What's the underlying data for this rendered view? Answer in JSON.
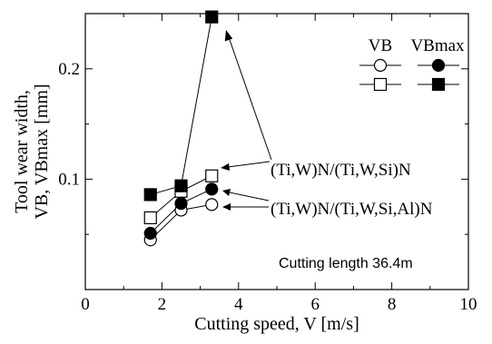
{
  "chart_data": {
    "type": "line",
    "xlabel": "Cutting speed, V [m/s]",
    "ylabel_line1": "Tool wear width,",
    "ylabel_line2": "VB, VBmax [mm]",
    "xlim": [
      0,
      10
    ],
    "ylim": [
      0,
      0.25
    ],
    "x_ticks": [
      0,
      2,
      4,
      6,
      8,
      10
    ],
    "y_ticks": [
      0.1,
      0.2
    ],
    "x_tick_labels": [
      "0",
      "2",
      "4",
      "6",
      "8",
      "10"
    ],
    "y_tick_labels": [
      "0.1",
      "0.2"
    ],
    "grid": false,
    "legend": {
      "placement": "top-right",
      "col_labels": [
        "VB",
        "VBmax"
      ]
    },
    "series": [
      {
        "coating": "(Ti,W)N/(Ti,W,Si,Al)N",
        "metric": "VB",
        "marker": "circle",
        "filled": false,
        "x": [
          1.7,
          2.5,
          3.3
        ],
        "y": [
          0.045,
          0.072,
          0.077
        ]
      },
      {
        "coating": "(Ti,W)N/(Ti,W,Si,Al)N",
        "metric": "VBmax",
        "marker": "circle",
        "filled": true,
        "x": [
          1.7,
          2.5,
          3.3
        ],
        "y": [
          0.051,
          0.078,
          0.091
        ]
      },
      {
        "coating": "(Ti,W)N/(Ti,W,Si)N",
        "metric": "VB",
        "marker": "square",
        "filled": false,
        "x": [
          1.7,
          2.5,
          3.3
        ],
        "y": [
          0.065,
          0.089,
          0.103
        ]
      },
      {
        "coating": "(Ti,W)N/(Ti,W,Si)N",
        "metric": "VBmax",
        "marker": "square",
        "filled": true,
        "x": [
          1.7,
          2.5,
          3.3
        ],
        "y": [
          0.086,
          0.094,
          0.247
        ]
      }
    ],
    "annotations": [
      {
        "text": "(Ti,W)N/(Ti,W,Si)N"
      },
      {
        "text": "(Ti,W)N/(Ti,W,Si,Al)N"
      },
      {
        "text": "Cutting length 36.4m"
      }
    ]
  }
}
